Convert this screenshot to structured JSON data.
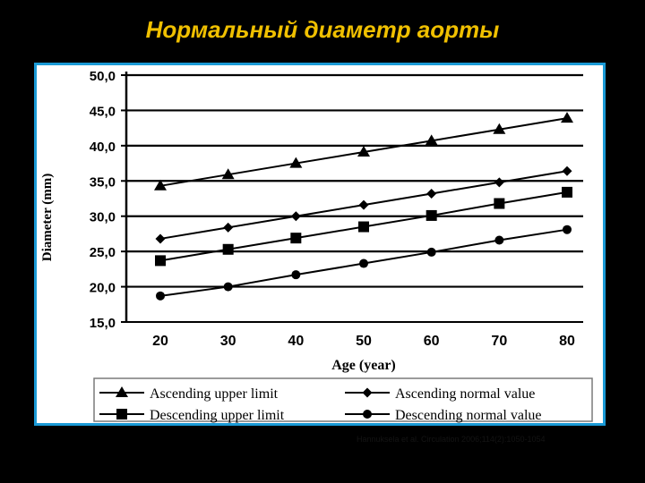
{
  "slide": {
    "title": "Нормальный диаметр аорты",
    "source": "Hannuksela et al. Circulation 2006;114(2):1050-1054"
  },
  "colors": {
    "background": "#000000",
    "title": "#f0c000",
    "frame": "#1a9ad6",
    "plot": "#000000"
  },
  "chart_data": {
    "type": "line",
    "xlabel": "Age (year)",
    "ylabel": "Diameter (mm)",
    "x": [
      20,
      30,
      40,
      50,
      60,
      70,
      80
    ],
    "x_tick_labels": [
      "20",
      "30",
      "40",
      "50",
      "60",
      "70",
      "80"
    ],
    "ylim": [
      15,
      50
    ],
    "y_tick_labels": [
      "15,0",
      "20,0",
      "25,0",
      "30,0",
      "35,0",
      "40,0",
      "45,0",
      "50,0"
    ],
    "grid": "horizontal",
    "legend": "bottom",
    "series": [
      {
        "name": "Ascending upper limit",
        "marker": "triangle",
        "values": [
          34.3,
          35.9,
          37.5,
          39.1,
          40.7,
          42.3,
          43.9
        ]
      },
      {
        "name": "Ascending normal value",
        "marker": "diamond",
        "values": [
          26.8,
          28.4,
          30.0,
          31.6,
          33.2,
          34.8,
          36.4
        ]
      },
      {
        "name": "Descending upper limit",
        "marker": "square",
        "values": [
          23.7,
          25.3,
          26.9,
          28.5,
          30.1,
          31.8,
          33.4
        ]
      },
      {
        "name": "Descending normal value",
        "marker": "circle",
        "values": [
          18.7,
          20.0,
          21.7,
          23.3,
          24.9,
          26.6,
          28.1
        ]
      }
    ]
  }
}
